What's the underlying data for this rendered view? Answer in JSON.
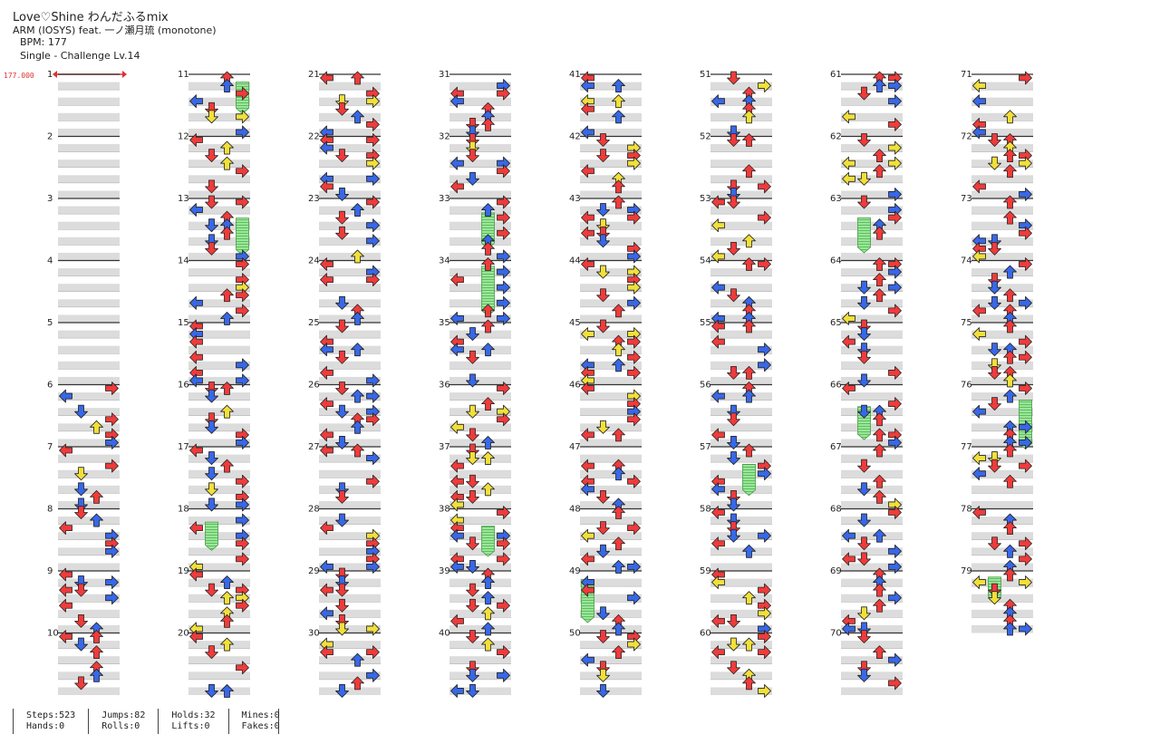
{
  "song": {
    "title": "Love♡Shine わんだふるmix",
    "artist": "ARM (IOSYS) feat. 一ノ瀬月琉 (monotone)",
    "bpm": "BPM: 177",
    "difficulty": "Single - Challenge  Lv.14"
  },
  "bpm_marker": {
    "label": "177.000"
  },
  "measures": [
    "1",
    "2",
    "3",
    "4",
    "5",
    "6",
    "7",
    "8",
    "9",
    "10",
    "11",
    "12",
    "13",
    "14",
    "15",
    "16",
    "17",
    "18",
    "19",
    "20",
    "21",
    "22",
    "23",
    "24",
    "25",
    "26",
    "27",
    "28",
    "29",
    "30",
    "31",
    "32",
    "33",
    "34",
    "35",
    "36",
    "37",
    "38",
    "39",
    "40",
    "41",
    "42",
    "43",
    "44",
    "45",
    "46",
    "47",
    "48",
    "49",
    "50",
    "51",
    "52",
    "53",
    "54",
    "55",
    "56",
    "57",
    "58",
    "59",
    "60",
    "61",
    "62",
    "63",
    "64",
    "65",
    "66",
    "67",
    "68",
    "69",
    "70",
    "71",
    "72",
    "73",
    "74",
    "75",
    "76",
    "77",
    "78",
    "79"
  ],
  "arrow_colors": {
    "quarter": "#ef3b3b",
    "eighth": "#3868e8",
    "sixteenth": "#f1e03a",
    "twelfth": "#a845e6",
    "hold": "#8fe08f"
  },
  "stats": {
    "steps": "Steps:523",
    "jumps": "Jumps:82",
    "holds": "Holds:32",
    "mines": "Mines:0",
    "hands": "Hands:0",
    "rolls": "Rolls:0",
    "lifts": "Lifts:0",
    "fakes": "Fakes:0"
  }
}
